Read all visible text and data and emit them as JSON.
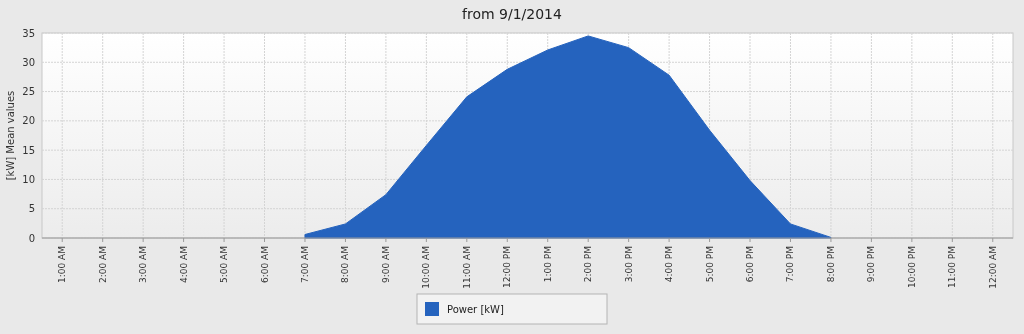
{
  "chart_data": {
    "type": "area",
    "title": "from 9/1/2014",
    "ylabel": "[kW] Mean values",
    "categories": [
      "1:00 AM",
      "2:00 AM",
      "3:00 AM",
      "4:00 AM",
      "5:00 AM",
      "6:00 AM",
      "7:00 AM",
      "8:00 AM",
      "9:00 AM",
      "10:00 AM",
      "11:00 AM",
      "12:00 PM",
      "1:00 PM",
      "2:00 PM",
      "3:00 PM",
      "4:00 PM",
      "5:00 PM",
      "6:00 PM",
      "7:00 PM",
      "8:00 PM",
      "9:00 PM",
      "10:00 PM",
      "11:00 PM",
      "12:00 AM"
    ],
    "series": [
      {
        "name": "Power [kW]",
        "color": "#2563be",
        "values": [
          null,
          null,
          null,
          null,
          null,
          null,
          0.6,
          2.4,
          7.4,
          15.8,
          24.1,
          28.8,
          32.1,
          34.5,
          32.5,
          27.8,
          18.4,
          9.8,
          2.4,
          0.1,
          null,
          null,
          null,
          null
        ]
      }
    ],
    "ylim": [
      0,
      35
    ],
    "yticks": [
      0,
      5,
      10,
      15,
      20,
      25,
      30,
      35
    ],
    "grid": true,
    "legend": "bottom"
  }
}
